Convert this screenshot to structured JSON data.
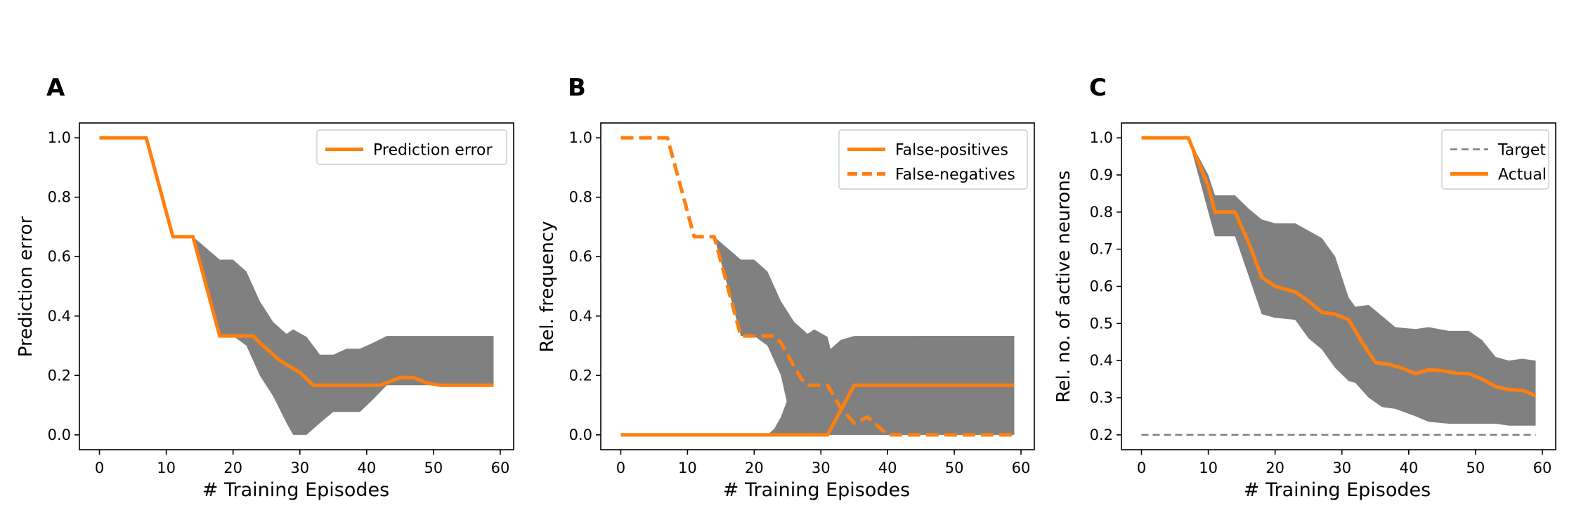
{
  "chart_data": [
    {
      "panel_label": "A",
      "type": "line",
      "xlabel": "# Training Episodes",
      "ylabel": "Prediction error",
      "xlim": [
        -3,
        62
      ],
      "ylim": [
        -0.05,
        1.05
      ],
      "xticks": [
        0,
        10,
        20,
        30,
        40,
        50,
        60
      ],
      "xtick_labels": [
        "0",
        "10",
        "20",
        "30",
        "40",
        "50",
        "60"
      ],
      "yticks": [
        0.0,
        0.2,
        0.4,
        0.6,
        0.8,
        1.0
      ],
      "ytick_labels": [
        "0.0",
        "0.2",
        "0.4",
        "0.6",
        "0.8",
        "1.0"
      ],
      "grid": false,
      "legend_position": "top-right",
      "bands": [
        {
          "color": "#808080",
          "x": [
            0,
            7,
            11,
            14,
            18,
            20,
            22,
            24,
            26,
            28,
            29,
            31,
            33,
            35,
            37,
            39,
            41,
            43,
            45,
            59
          ],
          "upper": [
            1.0,
            1.0,
            0.667,
            0.667,
            0.59,
            0.59,
            0.55,
            0.45,
            0.38,
            0.34,
            0.355,
            0.33,
            0.27,
            0.27,
            0.29,
            0.29,
            0.31,
            0.333,
            0.333,
            0.333
          ],
          "lower": [
            1.0,
            1.0,
            0.667,
            0.667,
            0.333,
            0.333,
            0.3,
            0.2,
            0.13,
            0.04,
            0.0,
            0.0,
            0.04,
            0.077,
            0.077,
            0.077,
            0.12,
            0.167,
            0.167,
            0.167
          ]
        }
      ],
      "series": [
        {
          "name": "Prediction error",
          "color": "#ff7f0e",
          "dash": "solid",
          "x": [
            0,
            7,
            11,
            14,
            18,
            20,
            23,
            24,
            27,
            30,
            32,
            35,
            38,
            42,
            45,
            47,
            49,
            51,
            59
          ],
          "y": [
            1.0,
            1.0,
            0.667,
            0.667,
            0.333,
            0.333,
            0.333,
            0.31,
            0.25,
            0.21,
            0.167,
            0.167,
            0.167,
            0.167,
            0.193,
            0.193,
            0.175,
            0.167,
            0.167
          ]
        }
      ]
    },
    {
      "panel_label": "B",
      "type": "line",
      "xlabel": "# Training Episodes",
      "ylabel": "Rel. frequency",
      "xlim": [
        -3,
        62
      ],
      "ylim": [
        -0.05,
        1.05
      ],
      "xticks": [
        0,
        10,
        20,
        30,
        40,
        50,
        60
      ],
      "xtick_labels": [
        "0",
        "10",
        "20",
        "30",
        "40",
        "50",
        "60"
      ],
      "yticks": [
        0.0,
        0.2,
        0.4,
        0.6,
        0.8,
        1.0
      ],
      "ytick_labels": [
        "0.0",
        "0.2",
        "0.4",
        "0.6",
        "0.8",
        "1.0"
      ],
      "grid": false,
      "legend_position": "top-right",
      "bands": [
        {
          "color": "#808080",
          "x": [
            0,
            7,
            11,
            14,
            18,
            20,
            22,
            24,
            26,
            28,
            29,
            31,
            32,
            34,
            36,
            40,
            44,
            59
          ],
          "upper": [
            1.0,
            1.0,
            0.667,
            0.667,
            0.59,
            0.59,
            0.55,
            0.45,
            0.38,
            0.34,
            0.355,
            0.33,
            0.24,
            0.26,
            0.26,
            0.26,
            0.333,
            0.333
          ],
          "lower": [
            1.0,
            1.0,
            0.667,
            0.667,
            0.333,
            0.333,
            0.3,
            0.2,
            0.0,
            0.0,
            0.0,
            0.0,
            0.0,
            0.0,
            0.0,
            0.0,
            0.0,
            0.0
          ]
        },
        {
          "color": "#808080",
          "x": [
            22,
            23,
            24,
            25,
            27,
            29,
            30,
            31,
            32,
            33,
            35,
            40,
            44,
            50,
            52,
            53,
            55,
            59
          ],
          "upper": [
            0.0,
            0.02,
            0.06,
            0.12,
            0.2,
            0.24,
            0.26,
            0.28,
            0.3,
            0.32,
            0.333,
            0.333,
            0.333,
            0.333,
            0.333,
            0.333,
            0.333,
            0.333
          ],
          "lower": [
            0.0,
            0.0,
            0.0,
            0.0,
            0.0,
            0.0,
            0.0,
            0.0,
            0.0,
            0.0,
            0.0,
            0.0,
            0.0,
            0.18,
            0.14,
            0.11,
            0.07,
            0.07
          ]
        }
      ],
      "series": [
        {
          "name": "False-positives",
          "color": "#ff7f0e",
          "dash": "solid",
          "x": [
            0,
            31,
            35,
            59
          ],
          "y": [
            0.0,
            0.0,
            0.167,
            0.167
          ]
        },
        {
          "name": "False-negatives",
          "color": "#ff7f0e",
          "dash": "dashed",
          "x": [
            0,
            7,
            11,
            14,
            18,
            20,
            23,
            24,
            27,
            28,
            31,
            33,
            35,
            37,
            39,
            40,
            59
          ],
          "y": [
            1.0,
            1.0,
            0.667,
            0.667,
            0.333,
            0.333,
            0.333,
            0.31,
            0.19,
            0.167,
            0.167,
            0.09,
            0.04,
            0.06,
            0.02,
            0.0,
            0.0
          ]
        }
      ]
    },
    {
      "panel_label": "C",
      "type": "line",
      "xlabel": "# Training Episodes",
      "ylabel": "Rel. no. of active neurons",
      "xlim": [
        -3,
        62
      ],
      "ylim": [
        0.16,
        1.04
      ],
      "xticks": [
        0,
        10,
        20,
        30,
        40,
        50,
        60
      ],
      "xtick_labels": [
        "0",
        "10",
        "20",
        "30",
        "40",
        "50",
        "60"
      ],
      "yticks": [
        0.2,
        0.3,
        0.4,
        0.5,
        0.6,
        0.7,
        0.8,
        0.9,
        1.0
      ],
      "ytick_labels": [
        "0.2",
        "0.3",
        "0.4",
        "0.5",
        "0.6",
        "0.7",
        "0.8",
        "0.9",
        "1.0"
      ],
      "grid": false,
      "legend_position": "top-right",
      "bands": [
        {
          "color": "#808080",
          "x": [
            0,
            7,
            10,
            11,
            14,
            16,
            18,
            20,
            23,
            25,
            27,
            29,
            31,
            32,
            34,
            36,
            38,
            41,
            43,
            46,
            49,
            51,
            53,
            55,
            57,
            59
          ],
          "upper": [
            1.0,
            1.0,
            0.9,
            0.845,
            0.845,
            0.81,
            0.78,
            0.77,
            0.77,
            0.75,
            0.73,
            0.68,
            0.57,
            0.545,
            0.55,
            0.52,
            0.49,
            0.485,
            0.49,
            0.48,
            0.48,
            0.455,
            0.41,
            0.4,
            0.405,
            0.4
          ],
          "lower": [
            1.0,
            1.0,
            0.8,
            0.735,
            0.735,
            0.63,
            0.525,
            0.515,
            0.51,
            0.46,
            0.43,
            0.38,
            0.345,
            0.34,
            0.3,
            0.275,
            0.27,
            0.25,
            0.235,
            0.23,
            0.23,
            0.23,
            0.23,
            0.225,
            0.225,
            0.225
          ]
        }
      ],
      "series": [
        {
          "name": "Target",
          "color": "#7f7f7f",
          "dash": "dashed",
          "x": [
            0,
            59
          ],
          "y": [
            0.2,
            0.2
          ]
        },
        {
          "name": "Actual",
          "color": "#ff7f0e",
          "dash": "solid",
          "x": [
            0,
            7,
            10,
            11,
            14,
            16,
            18,
            20,
            22,
            23,
            25,
            27,
            29,
            31,
            33,
            35,
            37,
            39,
            41,
            43,
            45,
            47,
            49,
            51,
            53,
            55,
            57,
            59
          ],
          "y": [
            1.0,
            1.0,
            0.87,
            0.8,
            0.8,
            0.72,
            0.625,
            0.6,
            0.59,
            0.585,
            0.56,
            0.53,
            0.525,
            0.51,
            0.45,
            0.395,
            0.39,
            0.38,
            0.365,
            0.375,
            0.373,
            0.366,
            0.365,
            0.35,
            0.33,
            0.322,
            0.32,
            0.306
          ]
        }
      ]
    }
  ]
}
